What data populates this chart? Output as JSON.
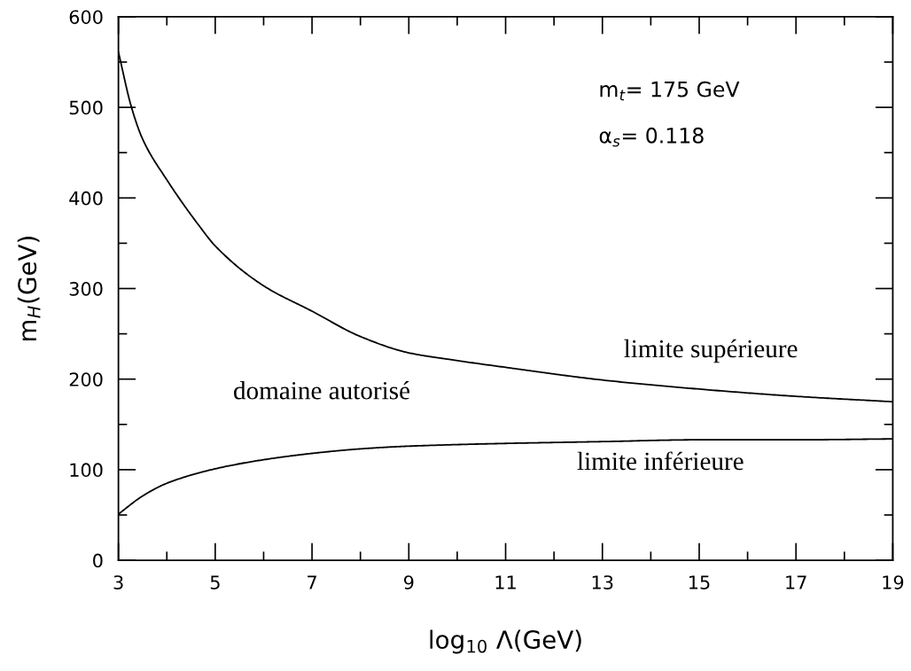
{
  "chart_data": {
    "type": "line",
    "xlabel": "log$_{10}$ Λ(GeV)",
    "ylabel": "m$_{H}$(GeV)",
    "xlim": [
      3,
      19
    ],
    "ylim": [
      0,
      600
    ],
    "xticks": [
      3,
      {
        "value": 4,
        "label": null
      },
      5,
      {
        "value": 6,
        "label": null
      },
      7,
      {
        "value": 8,
        "label": null
      },
      9,
      {
        "value": 10,
        "label": null
      },
      11,
      {
        "value": 12,
        "label": null
      },
      13,
      {
        "value": 14,
        "label": null
      },
      15,
      {
        "value": 16,
        "label": null
      },
      17,
      {
        "value": 18,
        "label": null
      },
      19
    ],
    "yticks": [
      0,
      {
        "value": 50,
        "label": null
      },
      100,
      {
        "value": 150,
        "label": null
      },
      200,
      {
        "value": 250,
        "label": null
      },
      300,
      {
        "value": 350,
        "label": null
      },
      400,
      {
        "value": 450,
        "label": null
      },
      500,
      {
        "value": 550,
        "label": null
      },
      600
    ],
    "grid": false,
    "legend": false,
    "marker": "none",
    "line_style": "solid",
    "series": [
      {
        "color": "#000000",
        "x": [
          3,
          3.27,
          3.5,
          4,
          4.7,
          5,
          6,
          7,
          8,
          9,
          9.8,
          11,
          13,
          15,
          17,
          19
        ],
        "values": [
          561,
          500,
          465,
          420,
          367,
          347,
          303,
          275,
          247,
          229,
          222,
          213,
          199,
          189,
          181,
          175
        ]
      },
      {
        "color": "#000000",
        "x": [
          3,
          3.5,
          4,
          5,
          6,
          7,
          8,
          9,
          11,
          13,
          15,
          17,
          19
        ],
        "values": [
          51,
          71,
          85,
          101,
          111,
          118,
          123,
          126,
          129,
          131,
          133,
          133,
          134
        ]
      }
    ],
    "annotations": [
      "m$_{t}$= 175 GeV",
      "α$_{s}$= 0.118",
      "limite supérieure",
      "domaine autorisé",
      "limite inférieure"
    ]
  }
}
